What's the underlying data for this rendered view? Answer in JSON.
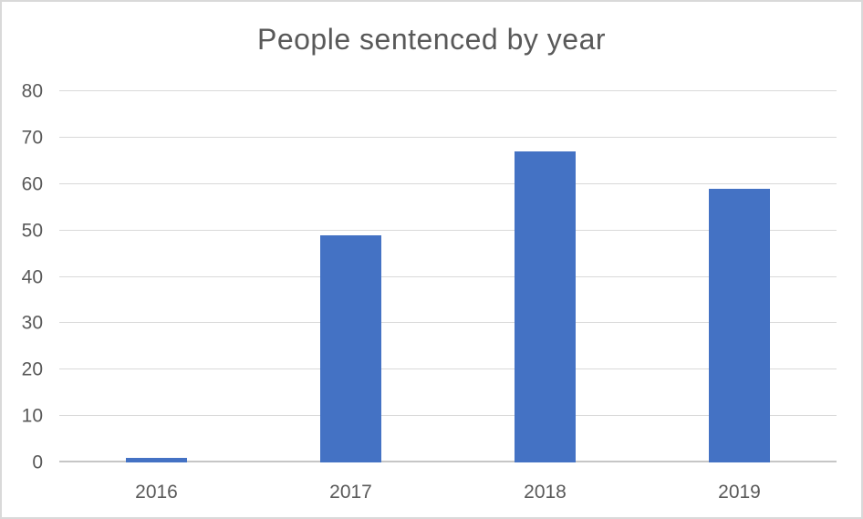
{
  "chart_data": {
    "type": "bar",
    "title": "People sentenced by year",
    "categories": [
      "2016",
      "2017",
      "2018",
      "2019"
    ],
    "values": [
      1,
      49,
      67,
      59
    ],
    "xlabel": "",
    "ylabel": "",
    "ylim": [
      0,
      80
    ],
    "yticks": [
      0,
      10,
      20,
      30,
      40,
      50,
      60,
      70,
      80
    ],
    "grid": true,
    "legend": false,
    "bar_color": "#4472c4"
  },
  "colors": {
    "background": "#ffffff",
    "border": "#d9d9d9",
    "gridline": "#d9d9d9",
    "axis_line": "#c6c6c6",
    "text": "#595959",
    "bar": "#4472c4"
  }
}
